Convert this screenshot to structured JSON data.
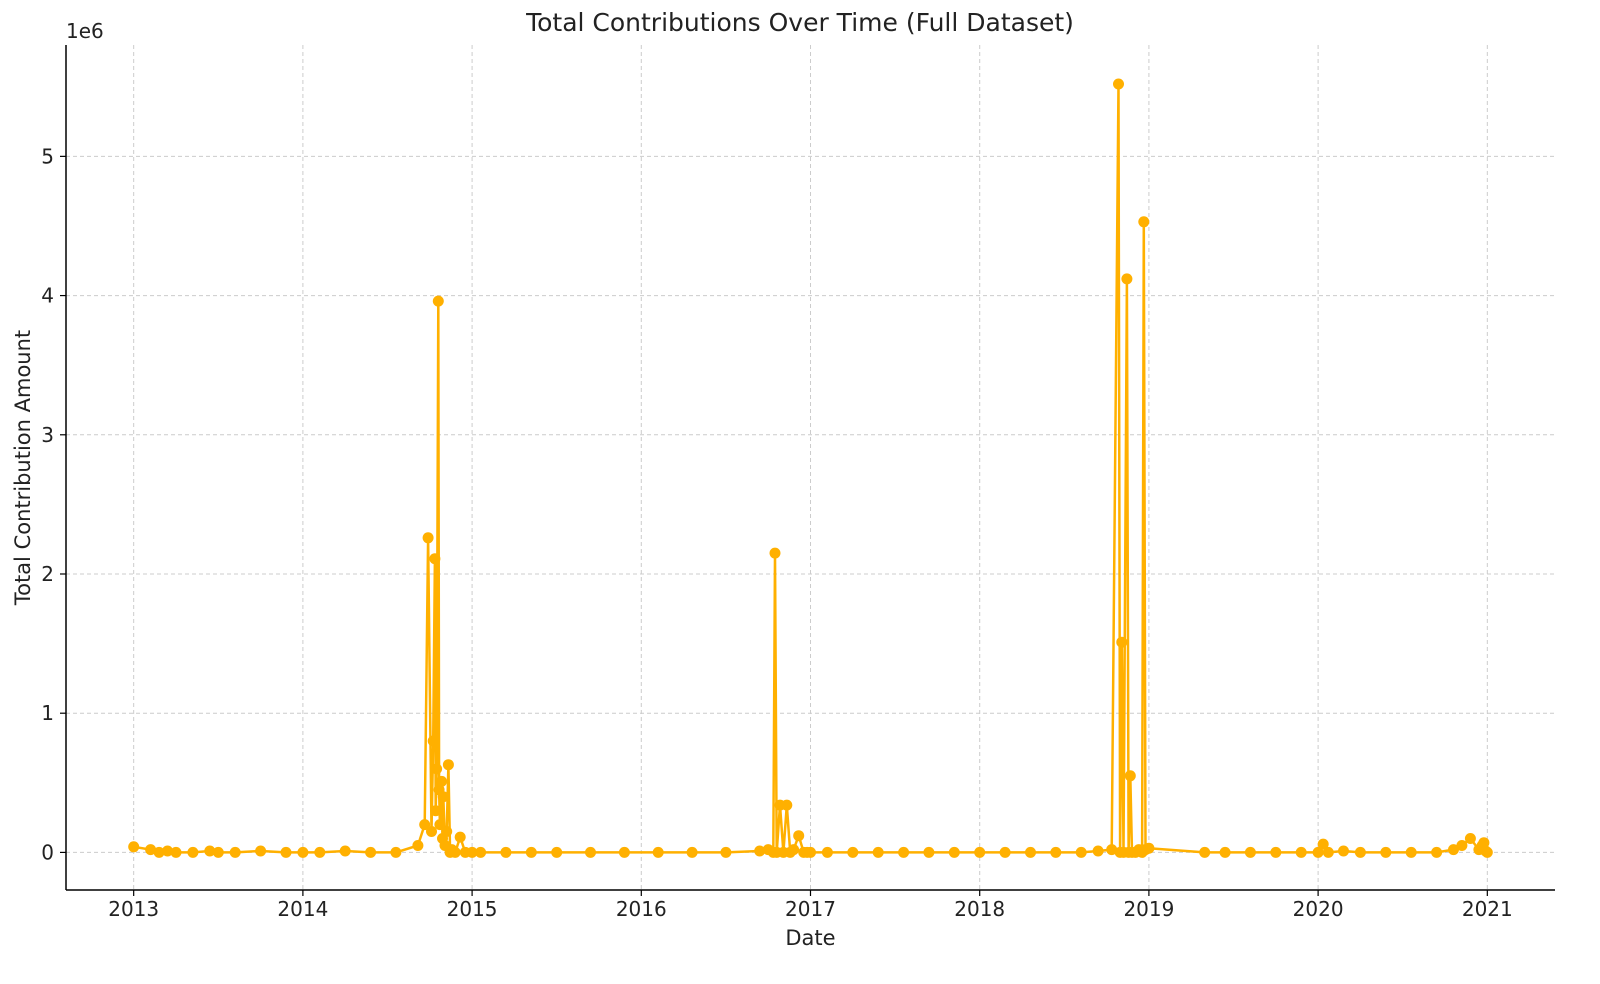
{
  "chart_data": {
    "type": "line",
    "title": "Total Contributions Over Time (Full Dataset)",
    "xlabel": "Date",
    "ylabel": "Total Contribution Amount",
    "y_scale_label": "1e6",
    "x_tick_labels": [
      "2013",
      "2014",
      "2015",
      "2016",
      "2017",
      "2018",
      "2019",
      "2020",
      "2021"
    ],
    "y_tick_labels": [
      "0",
      "1",
      "2",
      "3",
      "4",
      "5"
    ],
    "x_range": [
      2012.6,
      2021.4
    ],
    "y_range": [
      -0.27,
      5.8
    ],
    "grid": true,
    "colors": {
      "series": "#FFB000",
      "grid": "#cccccc",
      "axis": "#000000",
      "text": "#222222"
    },
    "series": [
      {
        "name": "Total Contribution Amount",
        "note": "x in fractional years, y in millions (1e6)",
        "x": [
          2013.0,
          2013.1,
          2013.15,
          2013.2,
          2013.25,
          2013.35,
          2013.45,
          2013.5,
          2013.6,
          2013.75,
          2013.9,
          2014.0,
          2014.1,
          2014.25,
          2014.4,
          2014.55,
          2014.68,
          2014.72,
          2014.74,
          2014.76,
          2014.77,
          2014.78,
          2014.785,
          2014.79,
          2014.8,
          2014.805,
          2014.81,
          2014.82,
          2014.825,
          2014.83,
          2014.84,
          2014.85,
          2014.86,
          2014.87,
          2014.88,
          2014.9,
          2014.93,
          2014.96,
          2015.0,
          2015.05,
          2015.2,
          2015.35,
          2015.5,
          2015.7,
          2015.9,
          2016.1,
          2016.3,
          2016.5,
          2016.7,
          2016.75,
          2016.78,
          2016.79,
          2016.8,
          2016.82,
          2016.84,
          2016.86,
          2016.88,
          2016.9,
          2016.93,
          2016.96,
          2016.98,
          2017.0,
          2017.1,
          2017.25,
          2017.4,
          2017.55,
          2017.7,
          2017.85,
          2018.0,
          2018.15,
          2018.3,
          2018.45,
          2018.6,
          2018.7,
          2018.78,
          2018.82,
          2018.83,
          2018.84,
          2018.85,
          2018.87,
          2018.88,
          2018.89,
          2018.9,
          2018.92,
          2018.94,
          2018.96,
          2018.97,
          2018.98,
          2019.0,
          2019.33,
          2019.45,
          2019.6,
          2019.75,
          2019.9,
          2020.0,
          2020.03,
          2020.06,
          2020.15,
          2020.25,
          2020.4,
          2020.55,
          2020.7,
          2020.8,
          2020.85,
          2020.9,
          2020.95,
          2020.97,
          2020.98,
          2020.99,
          2021.0
        ],
        "y": [
          0.04,
          0.02,
          0.0,
          0.01,
          0.0,
          0.0,
          0.01,
          0.0,
          0.0,
          0.01,
          0.0,
          0.0,
          0.0,
          0.01,
          0.0,
          0.0,
          0.05,
          0.2,
          2.26,
          0.15,
          0.8,
          2.11,
          0.3,
          0.6,
          3.96,
          0.45,
          0.2,
          0.51,
          0.1,
          0.4,
          0.05,
          0.15,
          0.63,
          0.0,
          0.02,
          0.0,
          0.11,
          0.0,
          0.0,
          0.0,
          0.0,
          0.0,
          0.0,
          0.0,
          0.0,
          0.0,
          0.0,
          0.0,
          0.01,
          0.02,
          0.0,
          2.15,
          0.0,
          0.34,
          0.0,
          0.34,
          0.0,
          0.02,
          0.12,
          0.0,
          0.0,
          0.0,
          0.0,
          0.0,
          0.0,
          0.0,
          0.0,
          0.0,
          0.0,
          0.0,
          0.0,
          0.0,
          0.0,
          0.01,
          0.02,
          5.52,
          0.0,
          1.51,
          0.0,
          4.12,
          0.0,
          0.55,
          0.0,
          0.0,
          0.02,
          0.0,
          4.53,
          0.02,
          0.03,
          0.0,
          0.0,
          0.0,
          0.0,
          0.0,
          0.0,
          0.06,
          0.0,
          0.01,
          0.0,
          0.0,
          0.0,
          0.0,
          0.02,
          0.05,
          0.1,
          0.02,
          0.05,
          0.07,
          0.01,
          0.0
        ]
      }
    ]
  }
}
